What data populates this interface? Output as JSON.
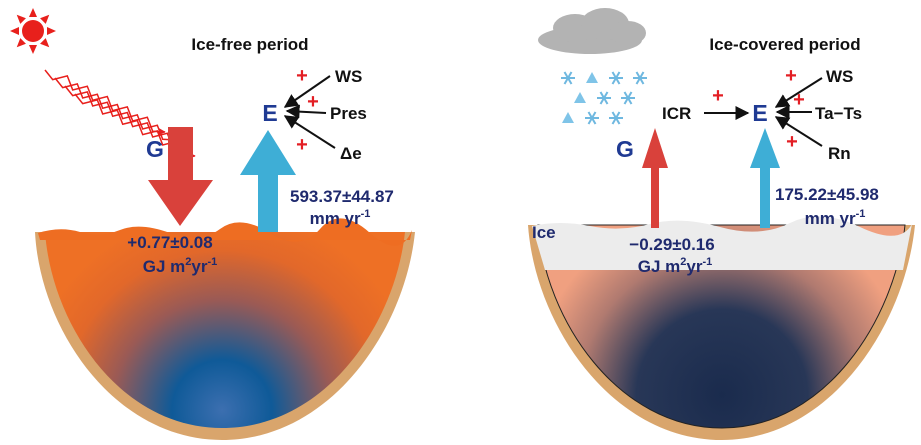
{
  "left_panel": {
    "title": "Ice-free period",
    "incoming": {
      "label": "G",
      "value": "+0.77±0.08",
      "unit": [
        "GJ m",
        "2",
        "yr",
        "-1"
      ]
    },
    "outgoing": {
      "label": "E",
      "value": "593.37±44.87",
      "unit": [
        "mm yr",
        "-1"
      ]
    },
    "drivers": [
      {
        "label": "WS",
        "sign": "+"
      },
      {
        "label": "Pres",
        "sign": "+"
      },
      {
        "label": "Δe",
        "sign": "+"
      }
    ]
  },
  "right_panel": {
    "title": "Ice-covered period",
    "layer_label": "Ice",
    "incoming": {
      "label": "G",
      "value": "−0.29±0.16",
      "unit": [
        "GJ m",
        "2",
        "yr",
        "-1"
      ]
    },
    "outgoing": {
      "label": "E",
      "value": "175.22±45.98",
      "unit": [
        "mm yr",
        "-1"
      ]
    },
    "mediator": {
      "label": "ICR",
      "sign": "+"
    },
    "drivers": [
      {
        "label": "WS",
        "sign": "+"
      },
      {
        "label": "Ta−Ts",
        "sign": "+"
      },
      {
        "label": "Rn",
        "sign": "+"
      }
    ]
  }
}
